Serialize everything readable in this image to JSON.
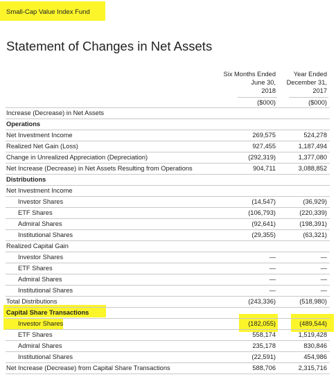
{
  "header": {
    "fund": "Small-Cap Value Index Fund",
    "title": "Statement of Changes in Net Assets"
  },
  "table": {
    "columns": [
      [
        "Six Months Ended",
        "June 30,",
        "2018",
        "($000)"
      ],
      [
        "Year Ended",
        "December 31,",
        "2017",
        "($000)"
      ]
    ],
    "rows": [
      [
        "Increase (Decrease) in Net Assets"
      ],
      [
        "Operations"
      ],
      [
        "Net Investment Income",
        "269,575",
        "524,278"
      ],
      [
        "Realized Net Gain (Loss)",
        "927,455",
        "1,187,494"
      ],
      [
        "Change in Unrealized Appreciation (Depreciation)",
        "(292,319)",
        "1,377,080"
      ],
      [
        "Net Increase (Decrease) in Net Assets Resulting from Operations",
        "904,711",
        "3,088,852"
      ],
      [
        "Distributions"
      ],
      [
        "Net Investment Income"
      ],
      [
        "Investor Shares",
        "(14,547)",
        "(36,929)"
      ],
      [
        "ETF Shares",
        "(106,793)",
        "(220,339)"
      ],
      [
        "Admiral Shares",
        "(92,641)",
        "(198,391)"
      ],
      [
        "Institutional Shares",
        "(29,355)",
        "(63,321)"
      ],
      [
        "Realized Capital Gain"
      ],
      [
        "Investor Shares",
        "—",
        "—"
      ],
      [
        "ETF Shares",
        "—",
        "—"
      ],
      [
        "Admiral Shares",
        "—",
        "—"
      ],
      [
        "Institutional Shares",
        "—",
        "—"
      ],
      [
        "Total Distributions",
        "(243,336)",
        "(518,980)"
      ],
      [
        "Capital Share Transactions"
      ],
      [
        "Investor Shares",
        "(182,055)",
        "(489,544)"
      ],
      [
        "ETF Shares",
        "558,174",
        "1,519,428"
      ],
      [
        "Admiral Shares",
        "235,178",
        "830,846"
      ],
      [
        "Institutional Shares",
        "(22,591)",
        "454,986"
      ],
      [
        "Net Increase (Decrease) from Capital Share Transactions",
        "588,706",
        "2,315,716"
      ]
    ]
  }
}
